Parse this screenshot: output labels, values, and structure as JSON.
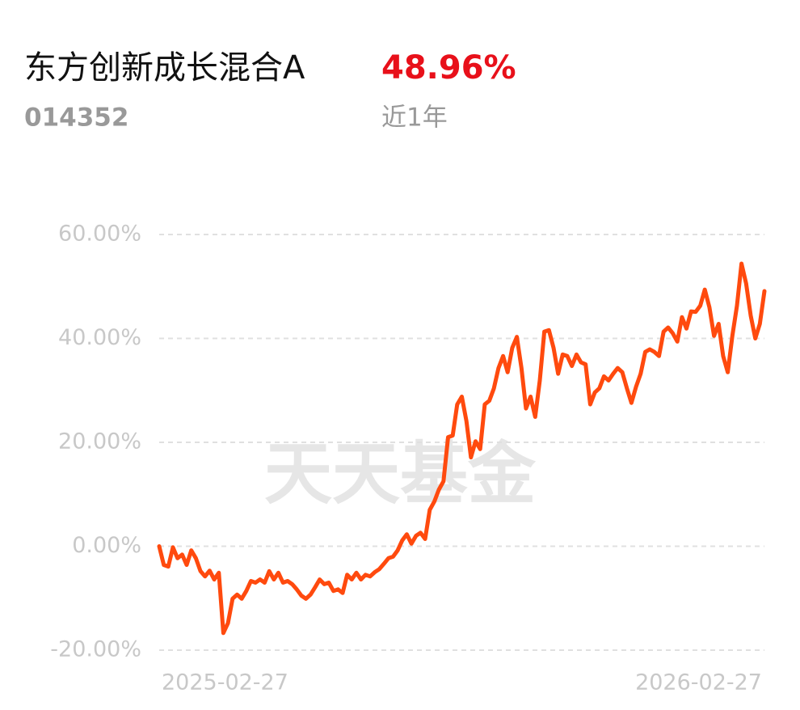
{
  "header": {
    "title": "东方创新成长混合A",
    "return": "48.96%",
    "code": "014352",
    "period": "近1年"
  },
  "watermark": "天天基金",
  "chart_data": {
    "type": "line",
    "categories": [
      "2025-02-27",
      null,
      null,
      null,
      null,
      null,
      null,
      null,
      null,
      null,
      null,
      null,
      null,
      null,
      null,
      null,
      null,
      null,
      null,
      null,
      null,
      null,
      null,
      null,
      null,
      null,
      null,
      null,
      null,
      null,
      null,
      null,
      null,
      null,
      null,
      null,
      null,
      null,
      null,
      null,
      null,
      null,
      null,
      null,
      null,
      null,
      null,
      null,
      null,
      null,
      null,
      null,
      null,
      null,
      null,
      null,
      null,
      null,
      null,
      null,
      null,
      null,
      null,
      null,
      null,
      null,
      null,
      null,
      null,
      null,
      null,
      null,
      null,
      null,
      null,
      null,
      null,
      null,
      null,
      null,
      null,
      null,
      null,
      null,
      null,
      null,
      null,
      null,
      null,
      null,
      null,
      null,
      null,
      null,
      null,
      null,
      null,
      null,
      null,
      null,
      null,
      null,
      null,
      null,
      null,
      null,
      null,
      null,
      null,
      null,
      null,
      null,
      null,
      null,
      null,
      null,
      null,
      null,
      null,
      null,
      null,
      null,
      null,
      null,
      null,
      null,
      null,
      null,
      null,
      null,
      null,
      null,
      "2026-02-27"
    ],
    "series": [
      {
        "color": "#ff4a0e",
        "values": [
          0,
          -3.6,
          -3.9,
          -0.2,
          -2.3,
          -1.6,
          -3.6,
          -0.8,
          -2.3,
          -4.8,
          -5.8,
          -4.7,
          -6.4,
          -5.1,
          -16.7,
          -14.8,
          -10.1,
          -9.3,
          -10.1,
          -8.6,
          -6.7,
          -7.0,
          -6.4,
          -7.0,
          -4.8,
          -6.4,
          -5.1,
          -7.0,
          -6.7,
          -7.3,
          -8.3,
          -9.5,
          -10.1,
          -9.3,
          -7.9,
          -6.4,
          -7.3,
          -7.0,
          -8.6,
          -8.3,
          -9.0,
          -5.5,
          -6.4,
          -5.1,
          -6.4,
          -5.5,
          -5.8,
          -5.0,
          -4.4,
          -3.4,
          -2.3,
          -2.0,
          -0.8,
          1.1,
          2.3,
          0.5,
          2.0,
          2.6,
          1.4,
          7.0,
          8.6,
          10.9,
          12.5,
          21.0,
          21.3,
          27.3,
          28.8,
          24.1,
          17.1,
          20.2,
          18.7,
          27.3,
          28.0,
          30.4,
          34.3,
          36.6,
          33.5,
          38.2,
          40.3,
          34.3,
          26.5,
          28.8,
          24.9,
          31.9,
          41.3,
          41.6,
          38.2,
          33.2,
          36.9,
          36.6,
          34.7,
          36.9,
          35.4,
          35.0,
          27.3,
          29.6,
          30.4,
          32.7,
          31.9,
          33.2,
          34.3,
          33.5,
          30.4,
          27.6,
          30.7,
          33.2,
          37.4,
          37.9,
          37.4,
          36.6,
          41.3,
          42.1,
          41.0,
          39.4,
          44.1,
          41.9,
          45.2,
          45.1,
          46.3,
          49.4,
          46.0,
          40.5,
          42.8,
          36.6,
          33.5,
          40.5,
          46.3,
          54.4,
          50.6,
          44.4,
          40.0,
          42.8,
          49.1
        ]
      }
    ],
    "ylim": [
      -20,
      60
    ],
    "yticks": [
      {
        "value": -20,
        "label": "-20.00%"
      },
      {
        "value": 0,
        "label": "0.00%"
      },
      {
        "value": 20,
        "label": "20.00%"
      },
      {
        "value": 40,
        "label": "40.00%"
      },
      {
        "value": 60,
        "label": "60.00%"
      }
    ],
    "grid": true
  }
}
